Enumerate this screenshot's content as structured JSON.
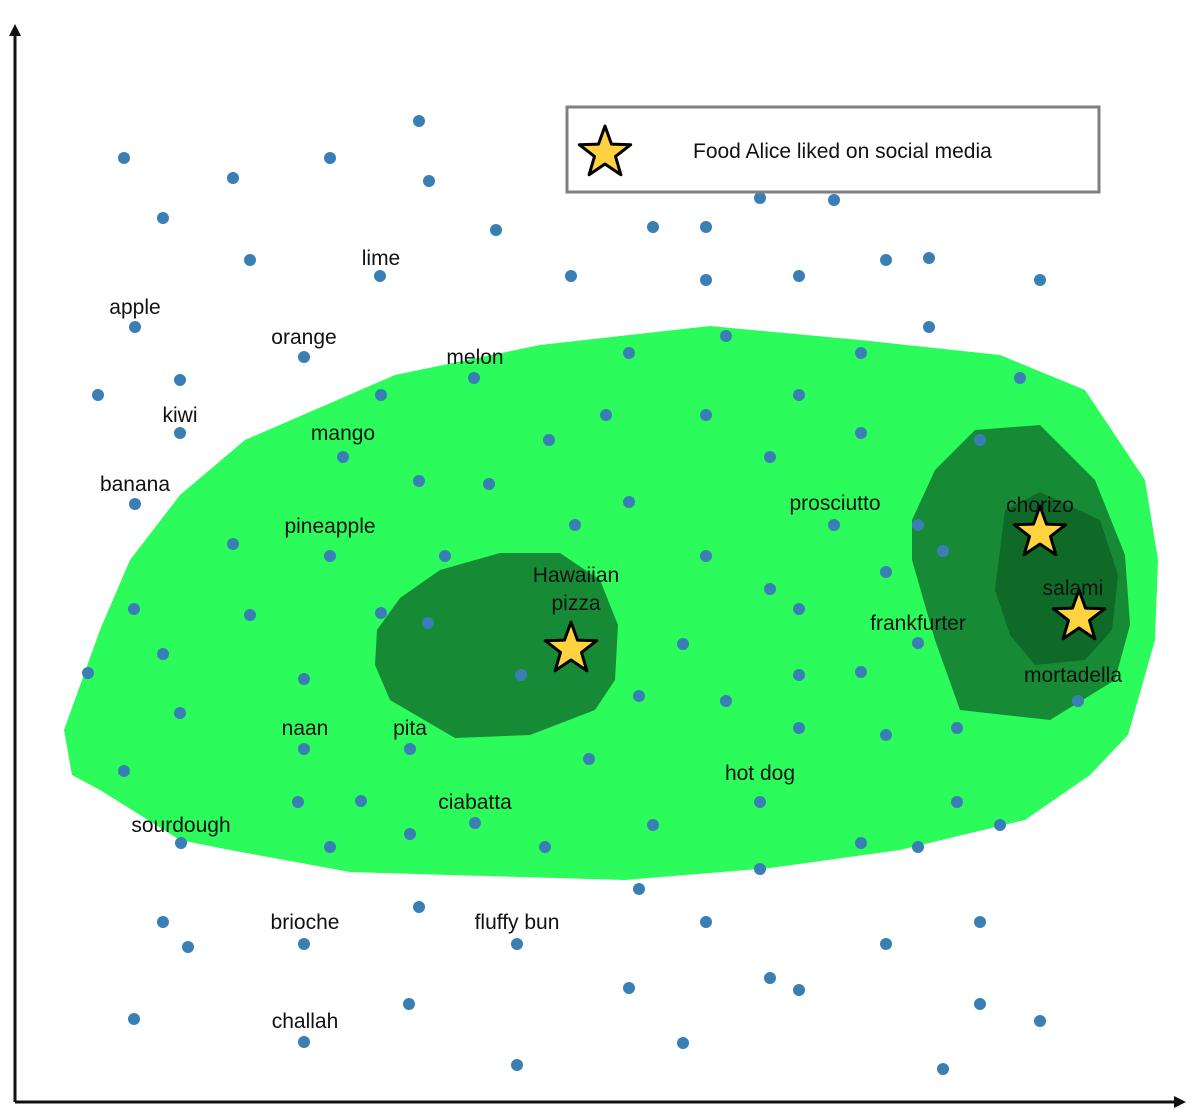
{
  "legend": {
    "label": "Food Alice liked on social media",
    "icon": "star-icon"
  },
  "labels": {
    "apple": "apple",
    "lime": "lime",
    "orange": "orange",
    "melon": "melon",
    "kiwi": "kiwi",
    "mango": "mango",
    "banana": "banana",
    "pineapple": "pineapple",
    "hawaiian1": "Hawaiian",
    "hawaiian2": "pizza",
    "prosciutto": "prosciutto",
    "chorizo": "chorizo",
    "salami": "salami",
    "frankfurter": "frankfurter",
    "mortadella": "mortadella",
    "naan": "naan",
    "pita": "pita",
    "ciabatta": "ciabatta",
    "hotdog": "hot dog",
    "sourdough": "sourdough",
    "brioche": "brioche",
    "fluffybun": "fluffy bun",
    "challah": "challah"
  },
  "colors": {
    "dot": "#3a7fb4",
    "region_outer": "#2bfc5b",
    "region_inner": "#178a36",
    "region_innermost": "#0f6a27",
    "star_fill": "#ffd23f",
    "star_stroke": "#000000",
    "axis": "#111111",
    "legend_border": "#7f7f7f"
  }
}
